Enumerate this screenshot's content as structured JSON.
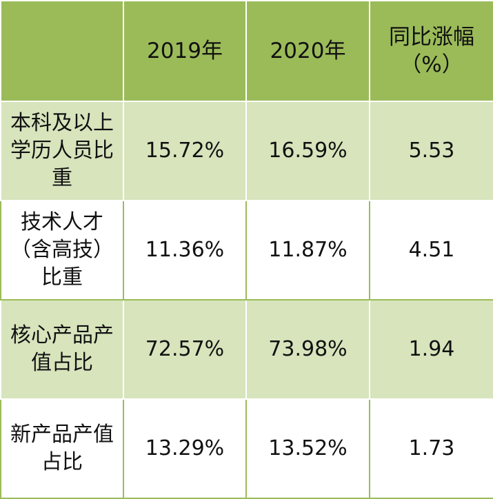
{
  "table": {
    "headers": [
      "",
      "2019年",
      "2020年",
      "同比涨幅（%）"
    ],
    "rows": [
      {
        "label": "本科及以上学历人员比重",
        "y2019": "15.72%",
        "y2020": "16.59%",
        "change": "5.53"
      },
      {
        "label": "技术人才（含高技）比重",
        "y2019": "11.36%",
        "y2020": "11.87%",
        "change": "4.51"
      },
      {
        "label": "核心产品产值占比",
        "y2019": "72.57%",
        "y2020": "73.98%",
        "change": "1.94"
      },
      {
        "label": "新产品产值占比",
        "y2019": "13.29%",
        "y2020": "13.52%",
        "change": "1.73"
      }
    ]
  },
  "colors": {
    "header_bg": "#9bbb59",
    "shade_bg": "#d7e4bc",
    "plain_bg": "#ffffff"
  }
}
